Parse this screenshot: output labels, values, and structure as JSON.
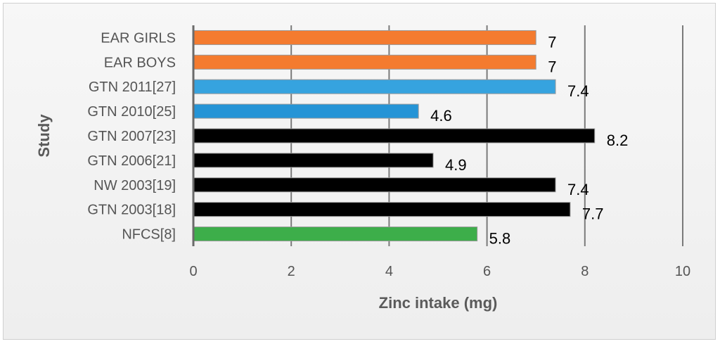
{
  "chart_data": {
    "type": "bar",
    "orientation": "horizontal",
    "xlabel": "Zinc intake (mg)",
    "ylabel": "Study",
    "xlim": [
      0,
      10
    ],
    "x_ticks": [
      "0",
      "2",
      "4",
      "6",
      "8",
      "10"
    ],
    "grid": true,
    "legend": "none",
    "categories": [
      "EAR GIRLS",
      "EAR BOYS",
      "GTN 2011[27]",
      "GTN  2010[25]",
      "GTN 2007[23]",
      "GTN 2006[21]",
      "NW  2003[19]",
      "GTN 2003[18]",
      "NFCS[8]"
    ],
    "values": [
      7,
      7,
      7.4,
      4.6,
      8.2,
      4.9,
      7.4,
      7.7,
      5.8
    ],
    "value_labels": [
      "7",
      "7",
      "7.4",
      "4.6",
      "8.2",
      "4.9",
      "7.4",
      "7.7",
      "5.8"
    ],
    "bar_colors": [
      "#F47B2F",
      "#F47B2F",
      "#36A3DF",
      "#2594D6",
      "#000000",
      "#000000",
      "#000000",
      "#000000",
      "#3DAE4A"
    ]
  }
}
